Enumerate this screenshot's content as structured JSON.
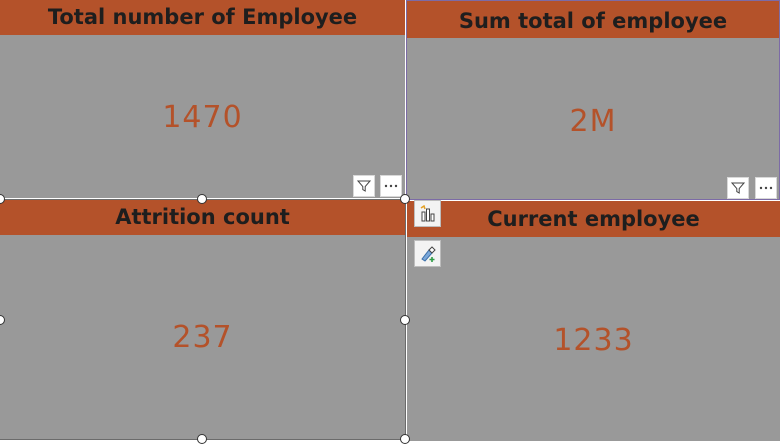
{
  "cards": [
    {
      "title": "Total number of Employee",
      "value": "1470"
    },
    {
      "title": "Sum total of employee",
      "value": "2M"
    },
    {
      "title": "Attrition count",
      "value": "237"
    },
    {
      "title": "Current employee",
      "value": "1233"
    }
  ],
  "icons": {
    "filter": "filter-icon",
    "more": "more-options-icon",
    "format_visual": "format-visual-icon",
    "analytics": "analytics-icon"
  },
  "colors": {
    "header_bg": "#b4522a",
    "card_bg": "#999999",
    "value_text": "#b4522a",
    "header_text": "#1e1e1e",
    "selection_outline": "#7c6ba6"
  }
}
